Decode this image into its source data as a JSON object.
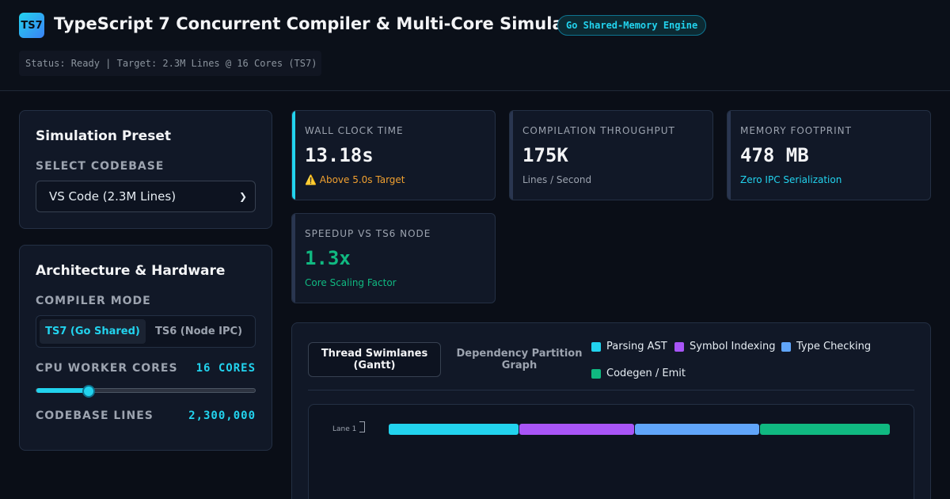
{
  "header": {
    "logo": "TS7",
    "title": "TypeScript 7 Concurrent Compiler & Multi-Core Simulator",
    "engine_badge": "Go Shared-Memory Engine",
    "status": "Status: Ready | Target: 2.3M Lines @ 16 Cores (TS7)"
  },
  "preset_panel": {
    "title": "Simulation Preset",
    "select_label": "SELECT CODEBASE",
    "select_value": "VS Code (2.3M Lines)"
  },
  "arch_panel": {
    "title": "Architecture & Hardware",
    "mode_label": "COMPILER MODE",
    "modes": [
      "TS7 (Go Shared)",
      "TS6 (Node IPC)"
    ],
    "active_mode": "TS7 (Go Shared)",
    "cores_label": "CPU WORKER CORES",
    "cores_value": "16 CORES",
    "cores_slider": {
      "value": 16,
      "min": 1,
      "max": 64
    },
    "lines_label": "CODEBASE LINES",
    "lines_value": "2,300,000"
  },
  "metrics": [
    {
      "label": "WALL CLOCK TIME",
      "value": "13.18s",
      "sub": "⚠️ Above 5.0s Target",
      "sub_color": "#f0a030",
      "value_color": "#f3f4f6",
      "accent": true
    },
    {
      "label": "COMPILATION THROUGHPUT",
      "value": "175K",
      "sub": "Lines / Second",
      "sub_color": "#9ca3af",
      "value_color": "#f3f4f6",
      "accent": false
    },
    {
      "label": "MEMORY FOOTPRINT",
      "value": "478 MB",
      "sub": "Zero IPC Serialization",
      "sub_color": "#22d3ee",
      "value_color": "#f3f4f6",
      "accent": false
    },
    {
      "label": "SPEEDUP VS TS6 NODE",
      "value": "1.3x",
      "sub": "Core Scaling Factor",
      "sub_color": "#10b981",
      "value_color": "#10b981",
      "accent": false
    }
  ],
  "viz": {
    "tabs": [
      "Thread Swimlanes (Gantt)",
      "Dependency Partition Graph"
    ],
    "active_tab": "Thread Swimlanes (Gantt)",
    "legend": [
      {
        "name": "Parsing AST",
        "color": "#22d3ee"
      },
      {
        "name": "Symbol Indexing",
        "color": "#a855f7"
      },
      {
        "name": "Type Checking",
        "color": "#60a5fa"
      },
      {
        "name": "Codegen / Emit",
        "color": "#10b981"
      }
    ],
    "lanes": [
      {
        "label": "Lane 1",
        "phases": [
          {
            "name": "Parsing AST",
            "share": 0.26,
            "color": "#22d3ee"
          },
          {
            "name": "Symbol Indexing",
            "share": 0.23,
            "color": "#a855f7"
          },
          {
            "name": "Type Checking",
            "share": 0.25,
            "color": "#60a5fa"
          },
          {
            "name": "Codegen / Emit",
            "share": 0.26,
            "color": "#10b981"
          }
        ]
      }
    ]
  }
}
